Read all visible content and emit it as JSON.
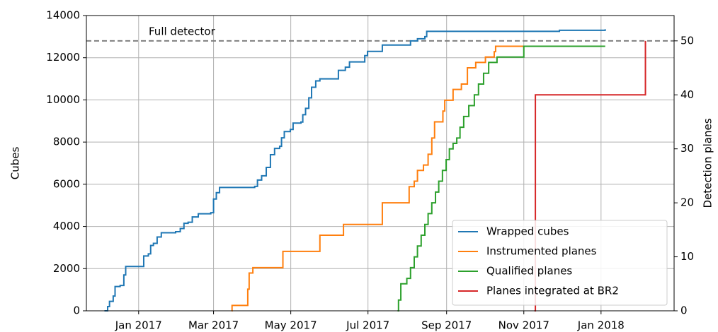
{
  "chart_data": {
    "type": "line",
    "drawstyle": "steps-post",
    "xlabel": null,
    "ylabel": "Cubes",
    "y2label": "Detection planes",
    "xlim": [
      2016.887,
      2018.158
    ],
    "ylim": [
      0,
      14000
    ],
    "y2lim": [
      0,
      54.6875
    ],
    "xticks": [
      {
        "value": 2017.0,
        "label": "Jan 2017"
      },
      {
        "value": 2017.162,
        "label": "Mar 2017"
      },
      {
        "value": 2017.329,
        "label": "May 2017"
      },
      {
        "value": 2017.496,
        "label": "Jul 2017"
      },
      {
        "value": 2017.666,
        "label": "Sep 2017"
      },
      {
        "value": 2017.833,
        "label": "Nov 2017"
      },
      {
        "value": 2018.0,
        "label": "Jan 2018"
      }
    ],
    "yticks": [
      0,
      2000,
      4000,
      6000,
      8000,
      10000,
      12000,
      14000
    ],
    "y2ticks": [
      0,
      10,
      20,
      30,
      40,
      50
    ],
    "grid": true,
    "legend": "lower right",
    "annotation": {
      "text": "Full detector",
      "y": 12800,
      "color": "#808080"
    },
    "series": [
      {
        "name": "Wrapped cubes",
        "color": "#1f77b4",
        "x": [
          2016.926,
          2016.933,
          2016.937,
          2016.945,
          2016.949,
          2016.96,
          2016.968,
          2016.972,
          2017.011,
          2017.021,
          2017.026,
          2017.032,
          2017.04,
          2017.049,
          2017.08,
          2017.09,
          2017.098,
          2017.107,
          2017.116,
          2017.129,
          2017.156,
          2017.162,
          2017.168,
          2017.175,
          2017.251,
          2017.257,
          2017.266,
          2017.276,
          2017.285,
          2017.294,
          2017.305,
          2017.309,
          2017.315,
          2017.328,
          2017.334,
          2017.351,
          2017.355,
          2017.361,
          2017.368,
          2017.374,
          2017.383,
          2017.392,
          2017.432,
          2017.447,
          2017.456,
          2017.489,
          2017.495,
          2017.527,
          2017.588,
          2017.603,
          2017.619,
          2017.623,
          2017.91,
          2018.009
        ],
        "values": [
          0,
          200,
          450,
          700,
          1150,
          1200,
          1700,
          2100,
          2600,
          2700,
          3100,
          3200,
          3500,
          3700,
          3750,
          3900,
          4150,
          4200,
          4450,
          4600,
          4650,
          5300,
          5600,
          5850,
          5900,
          6200,
          6400,
          6800,
          7400,
          7700,
          7800,
          8200,
          8500,
          8600,
          8900,
          8950,
          9300,
          9600,
          10100,
          10600,
          10900,
          11000,
          11400,
          11550,
          11800,
          12100,
          12300,
          12600,
          12800,
          12900,
          13000,
          13250,
          13300,
          13350
        ]
      },
      {
        "name": "Instrumented planes",
        "color": "#ff7f0e",
        "axis": "y2",
        "x": [
          2017.201,
          2017.202,
          2017.236,
          2017.239,
          2017.247,
          2017.312,
          2017.392,
          2017.443,
          2017.527,
          2017.585,
          2017.596,
          2017.603,
          2017.616,
          2017.626,
          2017.634,
          2017.64,
          2017.658,
          2017.662,
          2017.68,
          2017.698,
          2017.711,
          2017.729,
          2017.75,
          2017.769,
          2017.772,
          2017.851
        ],
        "values": [
          0,
          1,
          4,
          7,
          8,
          11,
          14,
          16,
          20,
          23,
          24,
          26,
          27,
          29,
          32,
          35,
          37,
          39,
          41,
          42,
          45,
          46,
          47,
          48,
          49,
          49
        ]
      },
      {
        "name": "Qualified planes",
        "color": "#2ca02c",
        "axis": "y2",
        "x": [
          2017.56,
          2017.562,
          2017.567,
          2017.58,
          2017.588,
          2017.596,
          2017.603,
          2017.611,
          2017.619,
          2017.626,
          2017.634,
          2017.642,
          2017.649,
          2017.657,
          2017.665,
          2017.672,
          2017.68,
          2017.688,
          2017.695,
          2017.703,
          2017.714,
          2017.726,
          2017.735,
          2017.746,
          2017.757,
          2017.775,
          2017.833,
          2018.009
        ],
        "values": [
          0,
          2,
          5,
          6,
          8,
          10,
          12,
          14,
          16,
          18,
          20,
          22,
          24,
          26,
          28,
          30,
          31,
          32,
          34,
          36,
          38,
          40,
          42,
          44,
          46,
          47,
          49,
          49
        ]
      },
      {
        "name": "Planes integrated at BR2",
        "color": "#d62728",
        "axis": "y2",
        "x": [
          2017.856,
          2017.858,
          2018.096
        ],
        "values": [
          0,
          40,
          50
        ]
      }
    ]
  }
}
